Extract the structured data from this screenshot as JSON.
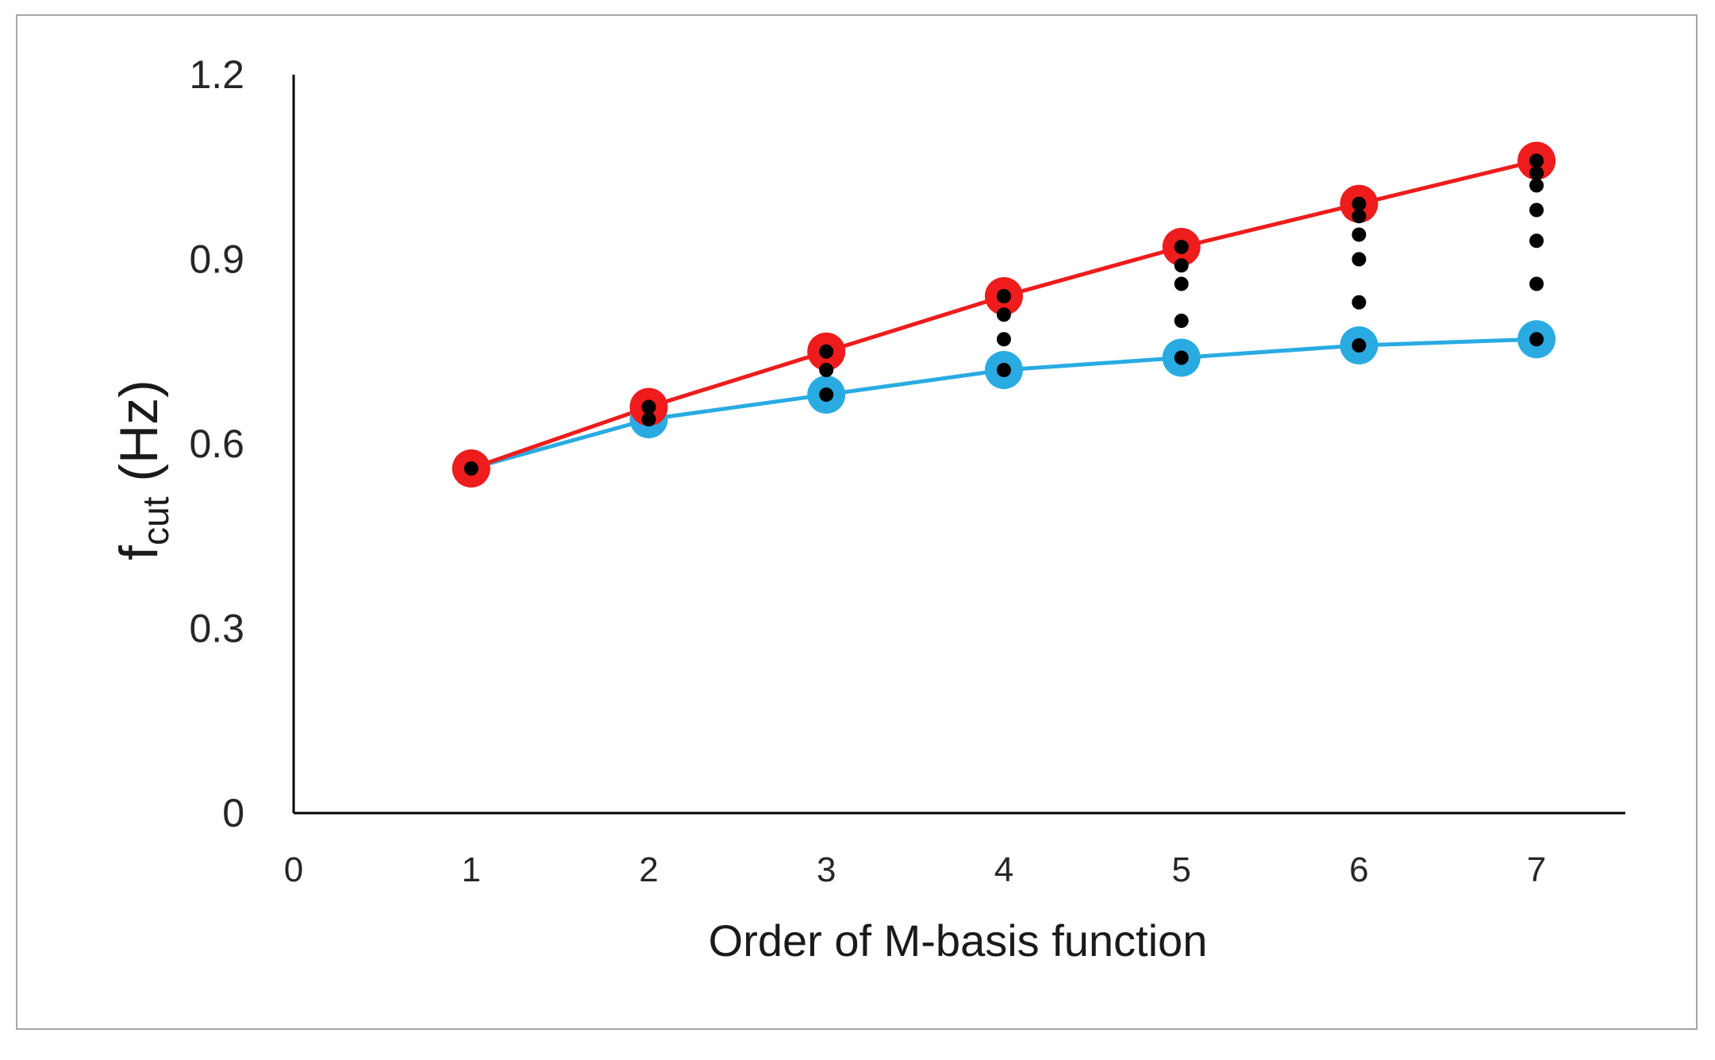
{
  "chart_data": {
    "type": "line",
    "title": "",
    "xlabel": "Order of M-basis function",
    "ylabel": {
      "main": "f",
      "subscript": "cut",
      "unit": " (Hz)"
    },
    "xlim": [
      0,
      7.5
    ],
    "ylim": [
      0,
      1.2
    ],
    "x_ticks": [
      0,
      1,
      2,
      3,
      4,
      5,
      6,
      7
    ],
    "y_ticks": [
      0,
      0.3,
      0.6,
      0.9,
      1.2
    ],
    "y_tick_labels": [
      "0",
      "0.3",
      "0.6",
      "0.9",
      "1.2"
    ],
    "grid": false,
    "legend": "none",
    "x": [
      1,
      2,
      3,
      4,
      5,
      6,
      7
    ],
    "series": [
      {
        "color": "#ee1c1c",
        "values": [
          0.56,
          0.66,
          0.75,
          0.84,
          0.92,
          0.99,
          1.06
        ]
      },
      {
        "color": "#29abe2",
        "values": [
          0.56,
          0.64,
          0.68,
          0.72,
          0.74,
          0.76,
          0.77
        ]
      }
    ],
    "intermediate_points": {
      "color": "#000000",
      "points": [
        {
          "x": 1,
          "values": [
            0.56
          ]
        },
        {
          "x": 2,
          "values": [
            0.64,
            0.66
          ]
        },
        {
          "x": 3,
          "values": [
            0.68,
            0.72,
            0.75
          ]
        },
        {
          "x": 4,
          "values": [
            0.72,
            0.77,
            0.81,
            0.84
          ]
        },
        {
          "x": 5,
          "values": [
            0.74,
            0.8,
            0.86,
            0.89,
            0.92
          ]
        },
        {
          "x": 6,
          "values": [
            0.76,
            0.83,
            0.9,
            0.94,
            0.97,
            0.99
          ]
        },
        {
          "x": 7,
          "values": [
            0.77,
            0.86,
            0.93,
            0.98,
            1.02,
            1.04,
            1.06
          ]
        }
      ]
    }
  }
}
